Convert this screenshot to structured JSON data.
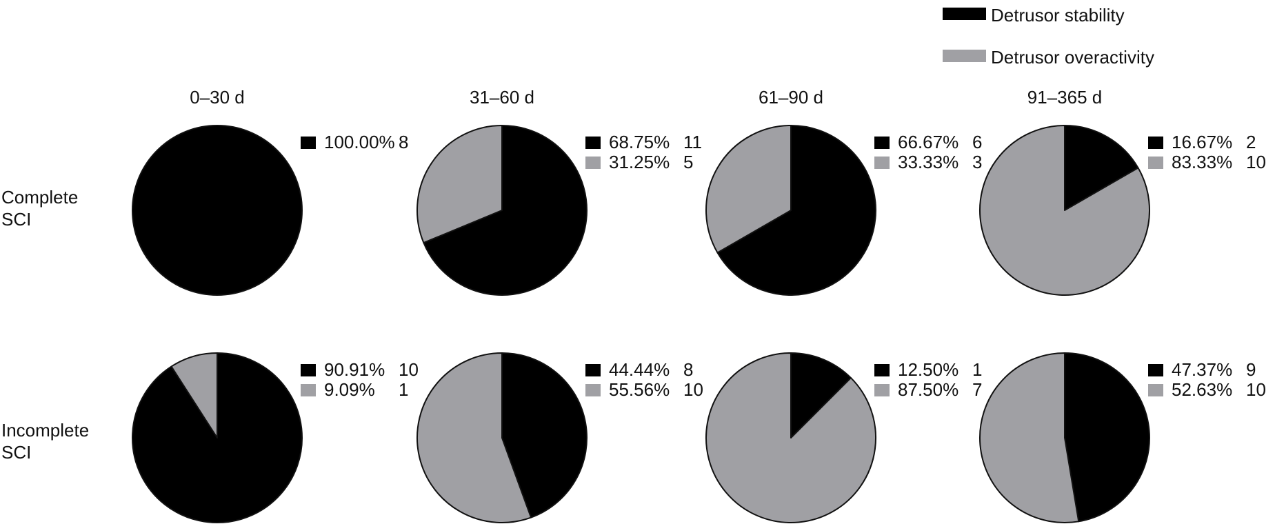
{
  "colors": {
    "stability": "#000000",
    "overactivity": "#a0a0a4",
    "outline": "#111111",
    "text": "#111111"
  },
  "chart_data": {
    "type": "pie",
    "legend_placement": "top-right",
    "legend": [
      {
        "key": "stability",
        "label": "Detrusor stability"
      },
      {
        "key": "overactivity",
        "label": "Detrusor overactivity"
      }
    ],
    "columns": [
      "0–30 d",
      "31–60 d",
      "61–90 d",
      "91–365 d"
    ],
    "rows": [
      {
        "label_lines": [
          "Complete",
          "SCI"
        ]
      },
      {
        "label_lines": [
          "Incomplete",
          "SCI"
        ]
      }
    ],
    "panels": [
      {
        "row": 0,
        "col": 0,
        "slices": [
          {
            "key": "stability",
            "percent_text": "100.00%",
            "count": 8
          }
        ]
      },
      {
        "row": 0,
        "col": 1,
        "slices": [
          {
            "key": "stability",
            "percent_text": "68.75%",
            "count": 11
          },
          {
            "key": "overactivity",
            "percent_text": "31.25%",
            "count": 5
          }
        ]
      },
      {
        "row": 0,
        "col": 2,
        "slices": [
          {
            "key": "stability",
            "percent_text": "66.67%",
            "count": 6
          },
          {
            "key": "overactivity",
            "percent_text": "33.33%",
            "count": 3
          }
        ]
      },
      {
        "row": 0,
        "col": 3,
        "slices": [
          {
            "key": "stability",
            "percent_text": "16.67%",
            "count": 2
          },
          {
            "key": "overactivity",
            "percent_text": "83.33%",
            "count": 10
          }
        ]
      },
      {
        "row": 1,
        "col": 0,
        "slices": [
          {
            "key": "stability",
            "percent_text": "90.91%",
            "count": 10
          },
          {
            "key": "overactivity",
            "percent_text": "9.09%",
            "count": 1
          }
        ]
      },
      {
        "row": 1,
        "col": 1,
        "slices": [
          {
            "key": "stability",
            "percent_text": "44.44%",
            "count": 8
          },
          {
            "key": "overactivity",
            "percent_text": "55.56%",
            "count": 10
          }
        ]
      },
      {
        "row": 1,
        "col": 2,
        "slices": [
          {
            "key": "stability",
            "percent_text": "12.50%",
            "count": 1
          },
          {
            "key": "overactivity",
            "percent_text": "87.50%",
            "count": 7
          }
        ]
      },
      {
        "row": 1,
        "col": 3,
        "slices": [
          {
            "key": "stability",
            "percent_text": "47.37%",
            "count": 9
          },
          {
            "key": "overactivity",
            "percent_text": "52.63%",
            "count": 10
          }
        ]
      }
    ]
  }
}
